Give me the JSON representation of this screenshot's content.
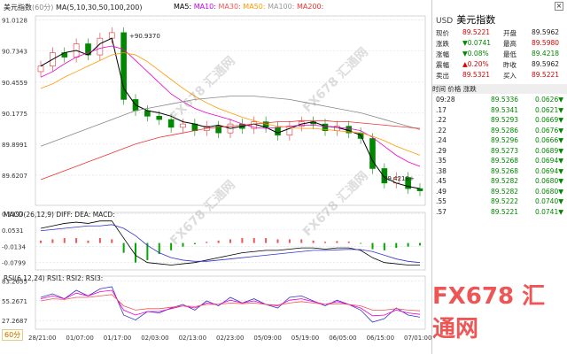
{
  "top": {
    "name": "美元指数",
    "period": "(60分)",
    "ma_label": "MA(5,10,30,50,100,200)",
    "ma_items": [
      {
        "label": "MA5:",
        "color": "#000"
      },
      {
        "label": "MA10:",
        "color": "#c0f"
      },
      {
        "label": "MA30:",
        "color": "#e55"
      },
      {
        "label": "MA50:",
        "color": "#f90"
      },
      {
        "label": "MA100:",
        "color": "#999"
      },
      {
        "label": "MA200:",
        "color": "#e33"
      }
    ],
    "high_tag": "90.9370",
    "low_tag": "89.4218"
  },
  "macd": {
    "label": "MACD(26,12,9) DIFF: DEA: MACD:"
  },
  "rsi": {
    "label": "RSI(6,12,24) RSI1: RSI2: RSI3:"
  },
  "period_badge": "60分",
  "watermark": "FX678 汇通网",
  "brand": "FX678 汇通网",
  "chart_data": [
    {
      "type": "line",
      "title": "美元指数 (60分)",
      "yticks": [
        "91.0128",
        "90.7343",
        "90.4559",
        "90.1775",
        "89.8991",
        "89.6207"
      ],
      "ylim": [
        89.35,
        91.05
      ],
      "xticks": [
        "28/21:00",
        "01/07:00",
        "01/17:00",
        "02/03:00",
        "02/13:00",
        "02/23:00",
        "05/09:00",
        "05/19:00",
        "06/05:00",
        "06/15:00",
        "07/01:00"
      ],
      "series": [
        {
          "name": "MA5",
          "values": [
            90.6,
            90.66,
            90.72,
            90.74,
            90.7,
            90.8,
            90.85,
            90.4,
            90.25,
            90.2,
            90.18,
            90.15,
            90.1,
            90.08,
            90.05,
            90.07,
            90.04,
            90.06,
            90.08,
            90.05,
            90.0,
            90.04,
            90.08,
            90.1,
            90.06,
            90.05,
            90.02,
            89.98,
            89.75,
            89.6,
            89.55,
            89.52,
            89.5
          ]
        },
        {
          "name": "MA30",
          "values": [
            90.5,
            90.55,
            90.62,
            90.68,
            90.72,
            90.76,
            90.78,
            90.75,
            90.65,
            90.55,
            90.45,
            90.35,
            90.28,
            90.22,
            90.18,
            90.15,
            90.12,
            90.08,
            90.05,
            90.04,
            90.05,
            90.06,
            90.07,
            90.07,
            90.06,
            90.05,
            90.04,
            90.02,
            89.96,
            89.88,
            89.8,
            89.74,
            89.7
          ]
        },
        {
          "name": "MA50",
          "values": [
            90.4,
            90.44,
            90.5,
            90.55,
            90.6,
            90.65,
            90.7,
            90.72,
            90.7,
            90.64,
            90.56,
            90.48,
            90.4,
            90.33,
            90.27,
            90.22,
            90.18,
            90.14,
            90.11,
            90.08,
            90.06,
            90.05,
            90.04,
            90.04,
            90.03,
            90.02,
            90.01,
            90.0,
            89.97,
            89.93,
            89.88,
            89.84,
            89.8
          ]
        },
        {
          "name": "MA100",
          "values": [
            89.88,
            89.92,
            89.96,
            90.0,
            90.04,
            90.08,
            90.12,
            90.16,
            90.2,
            90.22,
            90.24,
            90.26,
            90.28,
            90.3,
            90.31,
            90.32,
            90.33,
            90.33,
            90.33,
            90.32,
            90.31,
            90.3,
            90.28,
            90.26,
            90.24,
            90.22,
            90.2,
            90.18,
            90.15,
            90.12,
            90.09,
            90.06,
            90.03
          ]
        },
        {
          "name": "MA200",
          "values": [
            89.58,
            89.62,
            89.66,
            89.7,
            89.74,
            89.78,
            89.82,
            89.86,
            89.9,
            89.93,
            89.96,
            89.98,
            90.0,
            90.02,
            90.04,
            90.05,
            90.06,
            90.07,
            90.08,
            90.09,
            90.1,
            90.1,
            90.11,
            90.11,
            90.11,
            90.1,
            90.1,
            90.09,
            90.08,
            90.07,
            90.06,
            90.05,
            90.04
          ]
        }
      ],
      "candles_close": [
        90.6,
        90.72,
        90.68,
        90.8,
        90.7,
        90.85,
        90.9,
        90.3,
        90.2,
        90.15,
        90.12,
        90.05,
        90.08,
        90.02,
        90.06,
        90.0,
        90.08,
        90.04,
        90.1,
        90.05,
        89.98,
        90.06,
        90.1,
        90.08,
        90.02,
        90.06,
        90.0,
        89.95,
        89.68,
        89.55,
        89.6,
        89.5,
        89.48
      ]
    },
    {
      "type": "line",
      "title": "MACD(26,12,9)",
      "yticks": [
        "0.1197",
        "0.0531",
        "-0.0134",
        "-0.0799"
      ],
      "ylim": [
        -0.11,
        0.125
      ],
      "series": [
        {
          "name": "DIFF",
          "values": [
            0.06,
            0.07,
            0.08,
            0.085,
            0.08,
            0.09,
            0.09,
            0.02,
            -0.05,
            -0.08,
            -0.085,
            -0.09,
            -0.085,
            -0.08,
            -0.07,
            -0.06,
            -0.05,
            -0.04,
            -0.035,
            -0.03,
            -0.03,
            -0.025,
            -0.02,
            -0.02,
            -0.025,
            -0.02,
            -0.02,
            -0.03,
            -0.06,
            -0.08,
            -0.085,
            -0.09,
            -0.09
          ]
        },
        {
          "name": "DEA",
          "values": [
            0.05,
            0.055,
            0.06,
            0.065,
            0.07,
            0.07,
            0.075,
            0.06,
            0.03,
            -0.01,
            -0.04,
            -0.06,
            -0.07,
            -0.075,
            -0.075,
            -0.07,
            -0.065,
            -0.06,
            -0.055,
            -0.05,
            -0.045,
            -0.04,
            -0.035,
            -0.03,
            -0.03,
            -0.028,
            -0.026,
            -0.027,
            -0.035,
            -0.05,
            -0.065,
            -0.075,
            -0.08
          ]
        },
        {
          "name": "MACD",
          "values": [
            0.01,
            0.015,
            0.02,
            0.02,
            0.01,
            0.02,
            0.015,
            -0.04,
            -0.08,
            -0.07,
            -0.045,
            -0.03,
            -0.015,
            -0.005,
            0.005,
            0.01,
            0.015,
            0.02,
            0.02,
            0.02,
            0.015,
            0.015,
            0.015,
            0.01,
            0.005,
            0.008,
            0.006,
            -0.003,
            -0.025,
            -0.03,
            -0.02,
            -0.015,
            -0.01
          ]
        }
      ]
    },
    {
      "type": "line",
      "title": "RSI(6,12,24)",
      "yticks": [
        "83.2655",
        "55.2671",
        "27.2687"
      ],
      "ylim": [
        15,
        90
      ],
      "series": [
        {
          "name": "RSI1",
          "values": [
            60,
            65,
            58,
            70,
            62,
            72,
            75,
            35,
            28,
            40,
            38,
            45,
            50,
            42,
            55,
            48,
            60,
            52,
            58,
            50,
            45,
            60,
            62,
            55,
            48,
            56,
            50,
            42,
            25,
            30,
            45,
            35,
            32
          ]
        },
        {
          "name": "RSI2",
          "values": [
            58,
            62,
            58,
            66,
            62,
            68,
            70,
            42,
            35,
            40,
            40,
            44,
            48,
            45,
            52,
            50,
            56,
            52,
            55,
            50,
            48,
            56,
            58,
            54,
            50,
            54,
            50,
            45,
            34,
            35,
            42,
            38,
            36
          ]
        },
        {
          "name": "RSI3",
          "values": [
            55,
            58,
            57,
            60,
            60,
            62,
            64,
            48,
            42,
            44,
            44,
            46,
            48,
            47,
            50,
            50,
            52,
            51,
            52,
            50,
            49,
            52,
            54,
            52,
            50,
            51,
            50,
            48,
            42,
            42,
            44,
            42,
            41
          ]
        }
      ]
    }
  ],
  "side": {
    "currency": "USD",
    "name": "美元指数",
    "quotes": [
      {
        "l1": "现价",
        "v1": "89.5221",
        "c1": "red",
        "l2": "开盘",
        "v2": "89.5962",
        "c2": "black"
      },
      {
        "l1": "涨跌",
        "v1": "▼0.0741",
        "c1": "green",
        "l2": "最高",
        "v2": "89.5980",
        "c2": "red"
      },
      {
        "l1": "涨幅",
        "v1": "▼0.08%",
        "c1": "green",
        "l2": "最低",
        "v2": "89.4218",
        "c2": "green"
      },
      {
        "l1": "震幅",
        "v1": "▲0.20%",
        "c1": "red",
        "l2": "昨收",
        "v2": "89.5962",
        "c2": "black"
      },
      {
        "l1": "卖出",
        "v1": "89.5321",
        "c1": "red",
        "l2": "买入",
        "v2": "89.5221",
        "c2": "red"
      }
    ],
    "ticks_header": {
      "time": "时间",
      "price": "价格",
      "chg": "涨跌"
    },
    "ticks": [
      {
        "t": "09:28",
        "p": "89.5336",
        "c": "0.0626▼"
      },
      {
        "t": ".17",
        "p": "89.5341",
        "c": "0.0621▼"
      },
      {
        "t": ".22",
        "p": "89.5293",
        "c": "0.0669▼"
      },
      {
        "t": ".22",
        "p": "89.5286",
        "c": "0.0676▼"
      },
      {
        "t": ".24",
        "p": "89.5296",
        "c": "0.0666▼"
      },
      {
        "t": ".29",
        "p": "89.5273",
        "c": "0.0689▼"
      },
      {
        "t": ".35",
        "p": "89.5268",
        "c": "0.0694▼"
      },
      {
        "t": ".38",
        "p": "89.5268",
        "c": "0.0694▼"
      },
      {
        "t": ".45",
        "p": "89.5282",
        "c": "0.0680▼"
      },
      {
        "t": ".49",
        "p": "89.5282",
        "c": "0.0680▼"
      },
      {
        "t": ".55",
        "p": "89.5222",
        "c": "0.0740▼"
      },
      {
        "t": ".57",
        "p": "89.5221",
        "c": "0.0741▼"
      }
    ]
  }
}
